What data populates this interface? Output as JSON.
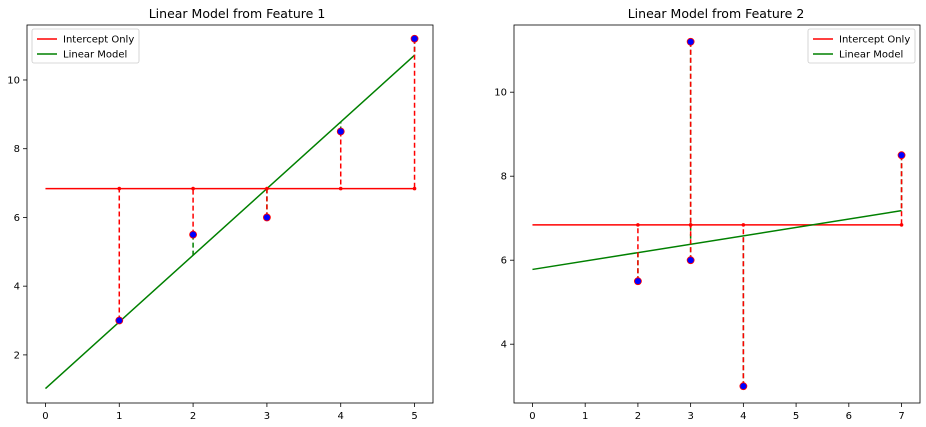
{
  "chart_data": [
    {
      "type": "line",
      "title": "Linear Model from Feature 1",
      "xlabel": "",
      "ylabel": "",
      "xlim": [
        -0.25,
        5.25
      ],
      "ylim": [
        0.6,
        11.6
      ],
      "xticks": [
        0,
        1,
        2,
        3,
        4,
        5
      ],
      "yticks": [
        2,
        4,
        6,
        8,
        10
      ],
      "grid": false,
      "legend": "top-left",
      "points": {
        "x": [
          1,
          2,
          3,
          4,
          5
        ],
        "y": [
          3.0,
          5.5,
          6.0,
          8.5,
          11.2
        ],
        "face_color": "#0000ff",
        "edge_color": "#ff0000"
      },
      "series": [
        {
          "name": "Intercept Only",
          "color": "#ff0000",
          "x": [
            0,
            5
          ],
          "y": [
            6.84,
            6.84
          ]
        },
        {
          "name": "Linear Model",
          "color": "#008000",
          "x": [
            0,
            5
          ],
          "y": [
            1.02,
            10.72
          ]
        }
      ],
      "residual_colors": {
        "intercept": "#ff0000",
        "linear": "#008000"
      }
    },
    {
      "type": "line",
      "title": "Linear Model from Feature 2",
      "xlabel": "",
      "ylabel": "",
      "xlim": [
        -0.35,
        7.35
      ],
      "ylim": [
        2.6,
        11.6
      ],
      "xticks": [
        0,
        1,
        2,
        3,
        4,
        5,
        6,
        7
      ],
      "yticks": [
        4,
        6,
        8,
        10
      ],
      "grid": false,
      "legend": "top-right",
      "points": {
        "x": [
          2,
          3,
          3,
          4,
          7
        ],
        "y": [
          5.5,
          11.2,
          6.0,
          3.0,
          8.5
        ],
        "face_color": "#0000ff",
        "edge_color": "#ff0000"
      },
      "series": [
        {
          "name": "Intercept Only",
          "color": "#ff0000",
          "x": [
            0,
            7
          ],
          "y": [
            6.84,
            6.84
          ]
        },
        {
          "name": "Linear Model",
          "color": "#008000",
          "x": [
            0,
            7
          ],
          "y": [
            5.78,
            7.18
          ]
        }
      ],
      "residual_colors": {
        "intercept": "#ff0000",
        "linear": "#008000"
      }
    }
  ]
}
